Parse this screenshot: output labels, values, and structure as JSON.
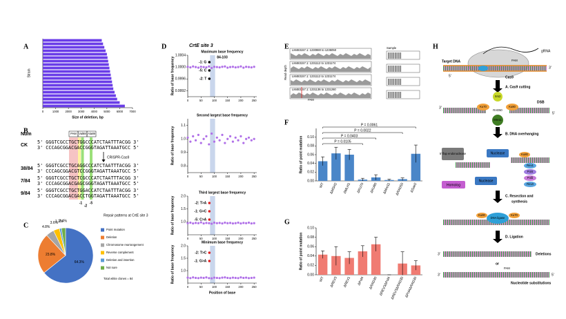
{
  "panels": [
    "A",
    "B",
    "C",
    "D",
    "E",
    "F",
    "G",
    "H"
  ],
  "chart_data": [
    {
      "type": "hbar",
      "xlabel": "Size of deletion, bp",
      "ylabel": "Strain",
      "categories": [
        null,
        null,
        null,
        null,
        null,
        null,
        null,
        null,
        null,
        null,
        null,
        null,
        null,
        null,
        null,
        null,
        null,
        null,
        null,
        null
      ],
      "values": [
        4600,
        4700,
        4800,
        4900,
        5000,
        5050,
        5100,
        5150,
        5200,
        5250,
        5300,
        5350,
        5400,
        5450,
        5500,
        5600,
        5700,
        5800,
        6000,
        6400
      ],
      "color": "#6a3de8",
      "xlim": [
        0,
        7000
      ],
      "xticks": [
        0,
        1000,
        2000,
        3000,
        4000,
        5000,
        6000,
        7000
      ]
    },
    {
      "type": "pie",
      "title": "Repair patterns at CrtE site 3",
      "note": "Total white clones = 84",
      "series": [
        {
          "name": "Point mutation",
          "color": "#4472c4",
          "value": 64.3,
          "label": "64.3%"
        },
        {
          "name": "Deletion",
          "color": "#ed7d31",
          "value": 23.8,
          "label": "23.8%"
        },
        {
          "name": "Chromosome rearrangement",
          "color": "#a5a5a5",
          "value": 4.8,
          "label": "4.8%"
        },
        {
          "name": "Reverse complement",
          "color": "#ffc000",
          "value": 3.6,
          "label": "3.6%"
        },
        {
          "name": "Deletion and insertion",
          "color": "#5b9bd5",
          "value": 1.2,
          "label": "1.2%"
        },
        {
          "name": "Not sure",
          "color": "#70ad47",
          "value": 2.4,
          "label": "2.4%"
        }
      ]
    },
    {
      "type": "scatter",
      "title": "CrtE site 3",
      "subtitle": "Maximum base frequency",
      "range_label": "84-103",
      "highlight": [
        84,
        103
      ],
      "ylabel": "Ratio of base frequency",
      "annotations": [
        "-1: G",
        "-5: C",
        "-2: T"
      ],
      "annotation_color": "#000000",
      "color": "#b070e8",
      "x": [
        0,
        10,
        20,
        30,
        40,
        50,
        60,
        70,
        80,
        90,
        100,
        110,
        120,
        130,
        140,
        150,
        160,
        170,
        180,
        190,
        200,
        210,
        220,
        230,
        240,
        250
      ],
      "values": [
        1.00001,
        0.99999,
        1.00002,
        1.0,
        0.99998,
        1.00001,
        1.0,
        0.99999,
        1.00002,
        0.99997,
        1.00001,
        1.0,
        0.99999,
        1.00001,
        1.00002,
        0.99998,
        1.0,
        1.00001,
        0.99999,
        1.0,
        1.00002,
        0.99998,
        1.00001,
        1.0,
        0.99999,
        1.00001
      ],
      "xlim": [
        0,
        260
      ],
      "xticks": [
        0,
        50,
        100,
        150,
        200,
        250
      ],
      "ylim": [
        0.999,
        1.0004
      ],
      "yticks": [
        0.9992,
        0.9996,
        {
          "value": 1,
          "label": "1.0000"
        },
        1.0004
      ]
    },
    {
      "type": "scatter",
      "subtitle": "Second largest base frequency",
      "highlight": [
        84,
        103
      ],
      "ylabel": "Ratio of base frequency",
      "annotations": [],
      "color": "#b070e8",
      "x": [
        0,
        10,
        20,
        30,
        40,
        50,
        60,
        70,
        80,
        90,
        100,
        110,
        120,
        130,
        140,
        150,
        160,
        170,
        180,
        190,
        200,
        210,
        220,
        230,
        240,
        250
      ],
      "values": [
        1.01,
        0.98,
        1.02,
        0.99,
        1.03,
        0.97,
        1.0,
        1.02,
        0.96,
        1.04,
        0.98,
        1.01,
        0.99,
        1.03,
        0.97,
        1.0,
        1.02,
        0.98,
        1.01,
        0.99,
        1.02,
        0.97,
        1.0,
        1.01,
        0.99,
        1.0
      ],
      "xlim": [
        0,
        260
      ],
      "xticks": [
        0,
        50,
        100,
        150,
        200,
        250
      ],
      "ylim": [
        0.75,
        1.15
      ],
      "yticks": [
        0.8,
        0.9,
        {
          "value": 1,
          "label": "1.0"
        },
        1.1
      ]
    },
    {
      "type": "scatter",
      "subtitle": "Third largest base frequency",
      "highlight": [
        84,
        103
      ],
      "ylabel": "Ratio of base frequency",
      "annotations": [
        "-2: T>A",
        "-1: G>C",
        "-5: C>A"
      ],
      "annotation_color": "#e02020",
      "color": "#b070e8",
      "x": [
        0,
        10,
        20,
        30,
        40,
        50,
        60,
        70,
        80,
        90,
        100,
        110,
        120,
        130,
        140,
        150,
        160,
        170,
        180,
        190,
        200,
        210,
        220,
        230,
        240,
        250
      ],
      "values": [
        0.95,
        0.97,
        0.94,
        0.96,
        0.95,
        0.98,
        0.94,
        0.96,
        0.95,
        0.93,
        0.97,
        0.95,
        0.96,
        0.94,
        0.97,
        0.95,
        0.96,
        0.94,
        0.95,
        0.97,
        0.94,
        0.96,
        0.95,
        0.97,
        0.94,
        0.95
      ],
      "xlim": [
        0,
        260
      ],
      "xticks": [
        0,
        50,
        100,
        150,
        200,
        250
      ],
      "ylim": [
        0.5,
        2
      ],
      "yticks": [
        {
          "value": 1,
          "label": "1.0"
        },
        1.5,
        {
          "value": 2,
          "label": "2.0"
        }
      ]
    },
    {
      "type": "scatter",
      "subtitle": "Minimum base frequency",
      "xlabel": "Position of base",
      "highlight": [
        84,
        103
      ],
      "ylabel": "Ratio of base frequency",
      "annotations": [
        "-2: T>C",
        "-1: G>A"
      ],
      "annotation_color": "#e02020",
      "color": "#b070e8",
      "x": [
        0,
        10,
        20,
        30,
        40,
        50,
        60,
        70,
        80,
        90,
        100,
        110,
        120,
        130,
        140,
        150,
        160,
        170,
        180,
        190,
        200,
        210,
        220,
        230,
        240,
        250
      ],
      "values": [
        0.72,
        0.7,
        0.73,
        0.71,
        0.7,
        0.72,
        0.71,
        0.73,
        0.7,
        0.69,
        0.72,
        0.71,
        0.7,
        0.72,
        0.73,
        0.71,
        0.7,
        0.72,
        0.71,
        0.7,
        0.73,
        0.71,
        0.72,
        0.7,
        0.71,
        0.72
      ],
      "xlim": [
        0,
        260
      ],
      "xticks": [
        0,
        50,
        100,
        150,
        200,
        250
      ],
      "ylim": [
        0.5,
        2
      ],
      "yticks": [
        {
          "value": 1,
          "label": "1.0"
        },
        1.5,
        {
          "value": 2,
          "label": "2.0"
        }
      ]
    },
    {
      "type": "bar",
      "ylabel": "Ratio of point mutation",
      "color": "#4a86c8",
      "categories": [
        "WT",
        "ΔMSH2",
        "ΔMLH1",
        "ΔKU70",
        "ΔKU80",
        "ΔMre11",
        "ΔRAD50",
        "ΔSae2"
      ],
      "values": [
        0.045,
        0.063,
        0.06,
        0.003,
        0.008,
        0.002,
        0.004,
        0.062
      ],
      "errors": [
        0.01,
        0.014,
        0.012,
        0.003,
        0.006,
        0.002,
        0.003,
        0.02
      ],
      "comparisons": [
        "P = 0.0061",
        "P = 0.0022",
        "P = 0.0403",
        "P = 0.0105"
      ],
      "ylim": [
        0,
        0.12
      ],
      "yticks": [
        {
          "value": 0,
          "label": "0.00"
        },
        0.02,
        0.04,
        0.06,
        0.08,
        {
          "value": 0.1,
          "label": "0.10"
        }
      ]
    },
    {
      "type": "bar",
      "ylabel": "Ratio of point mutation",
      "color": "#f07b72",
      "categories": [
        "WT",
        "ΔREV3",
        "ΔREV1",
        "ΔPol4",
        "ΔRAD30",
        "ΔREV3ΔPol4",
        "ΔREV3ΔRAD30",
        "ΔPol4ΔRAD30"
      ],
      "values": [
        0.043,
        0.04,
        0.036,
        0.05,
        0.065,
        0,
        0.024,
        0.02
      ],
      "errors": [
        0.008,
        0.02,
        0.013,
        0.012,
        0.015,
        0,
        0.025,
        0.01
      ],
      "ylim": [
        0,
        0.1
      ],
      "yticks": [
        {
          "value": 0,
          "label": "0.00"
        },
        0.02,
        0.04,
        0.06,
        0.08,
        {
          "value": 0.1,
          "label": "0.10"
        }
      ]
    }
  ],
  "sequence": {
    "header": "Num",
    "boxes": [
      "PAM",
      "Val88",
      "Ala89"
    ],
    "enzyme": "CRISPR-Cas9",
    "positions": [
      "-1",
      "-2",
      "-5"
    ],
    "rows": [
      {
        "label": "CK",
        "top": "5' GGGTCGCCTGCTGGCCCATCTAATTTACGG 3'",
        "bottom": "3' CCCAGCGGACGACCGGGTAGATTAAATGCC 5'"
      },
      {
        "label": "38/84",
        "top": "5' GGGTCGCCTGCAGGCCCATCTAATTTACGG 3'",
        "bottom": "3' CCCAGCGGACGTCCGGGTAGATTAAATGCC 5'"
      },
      {
        "label": "7/84",
        "top": "5' GGGTCGCCTGCTCGCCCATCTAATTTACGG 3'",
        "bottom": "3' CCCAGCGGACGAGCGGGTAGATTAAATGCC 5'"
      },
      {
        "label": "9/84",
        "top": "5' GGGTCGCCTGCTGGACCATCTAATTTACGG 3'",
        "bottom": "3' CCCAGCGGACGACCTGGTAGATTAAATGCC 5'"
      }
    ]
  },
  "browser": {
    "ylabel": "Read depth",
    "sample": "Sample",
    "tracks": [
      "LM483157.1: 1230980 to 1235050",
      "LM483157.1: 1231112 to 1231174",
      "LM483157.1: 1231112 to 1231174",
      "LM483157.1: 1231136 to 1231260"
    ],
    "pam": "PAM"
  },
  "diagram": {
    "target_dna": "Target DNA",
    "grna": "gRNA",
    "pam": "PAM",
    "cas9": "Cas9",
    "step_a": "A. Cas9 cutting",
    "dsb": "DSB",
    "xrs2": "Xrs2",
    "rad50": "RAD50",
    "mre11": "Mre11",
    "ku70": "Ku70",
    "ku80": "Ku80",
    "step_b": "B. DNA overhanging",
    "flap": "5' flap endonuclease",
    "nuclease": "Nuclease",
    "rev1": "Rev1",
    "pol4": "Pol4",
    "pold": "Polδ",
    "rev3": "Rev3",
    "homolog": "Homolog",
    "step_c": [
      "C. Resection and",
      "synthesis"
    ],
    "ligase": "DNA ligase",
    "step_d": "D. Ligation",
    "deletions": "Deletions",
    "or": "or",
    "substitutions": "Nucleotide substitutions",
    "end3": "3'",
    "end5": "5'"
  }
}
